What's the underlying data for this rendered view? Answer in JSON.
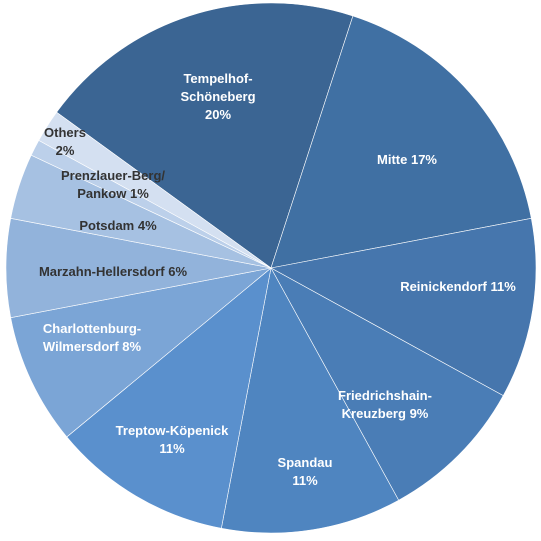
{
  "chart_data": {
    "type": "pie",
    "categories": [
      "Tempelhof-Schöneberg",
      "Mitte",
      "Reinickendorf",
      "Friedrichshain-Kreuzberg",
      "Spandau",
      "Treptow-Köpenick",
      "Charlottenburg-Wilmersdorf",
      "Marzahn-Hellersdorf",
      "Potsdam",
      "Prenzlauer-Berg/ Pankow",
      "Others"
    ],
    "values": [
      20,
      17,
      11,
      9,
      11,
      11,
      8,
      6,
      4,
      1,
      2
    ],
    "value_labels": [
      "20%",
      "17%",
      "11%",
      "9%",
      "11%",
      "11%",
      "8%",
      "6%",
      "4%",
      "1%",
      "2%"
    ],
    "colors": [
      "#3b6593",
      "#4070a3",
      "#4676ad",
      "#4a7db6",
      "#4f85c0",
      "#5a90cd",
      "#7ba5d6",
      "#92b3db",
      "#a6c1e2",
      "#bcd0ea",
      "#d4e0f1"
    ]
  }
}
